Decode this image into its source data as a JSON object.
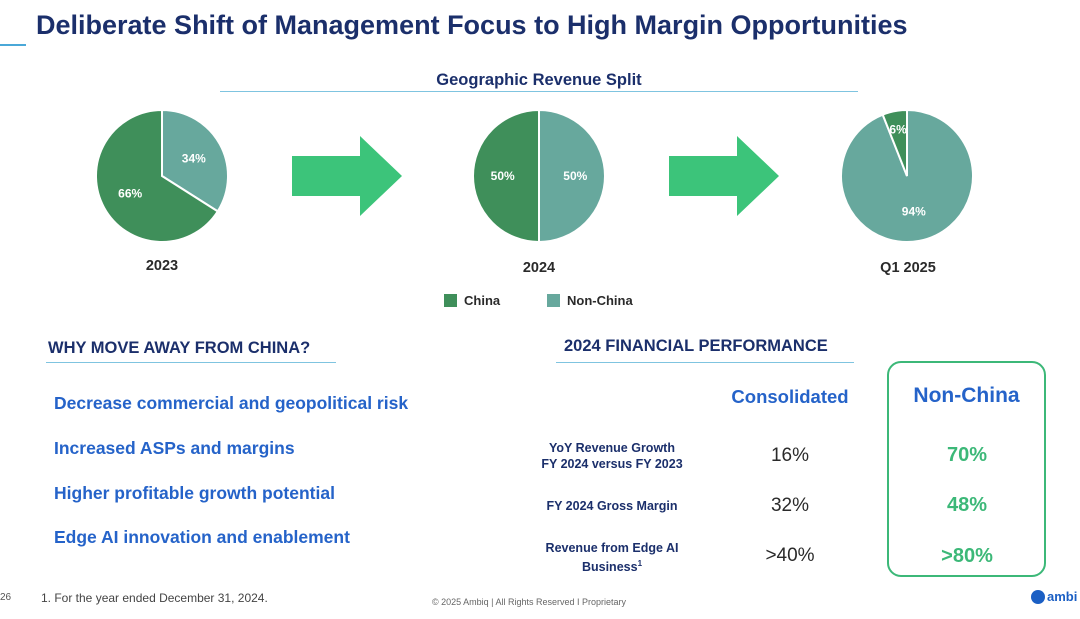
{
  "page": {
    "title": "Deliberate Shift of Management Focus to High Margin Opportunities",
    "page_number": "26",
    "footnote": "1. For the year ended December 31, 2024.",
    "copyright": "© 2025 Ambiq  |  All Rights Reserved I Proprietary",
    "logo_text": "ambi"
  },
  "chart_data": {
    "type": "pie",
    "title": "Geographic Revenue Split",
    "legend": [
      "China",
      "Non-China"
    ],
    "colors": {
      "China": "#3f8f5a",
      "Non-China": "#67a89d"
    },
    "pies": [
      {
        "label": "2023",
        "values": {
          "China": 66,
          "Non-China": 34
        },
        "labels": {
          "China": "66%",
          "Non-China": "34%"
        }
      },
      {
        "label": "2024",
        "values": {
          "China": 50,
          "Non-China": 50
        },
        "labels": {
          "China": "50%",
          "Non-China": "50%"
        }
      },
      {
        "label": "Q1 2025",
        "values": {
          "China": 6,
          "Non-China": 94
        },
        "labels": {
          "China": "6%",
          "Non-China": "94%"
        }
      }
    ]
  },
  "why": {
    "title": "WHY MOVE AWAY FROM CHINA?",
    "reasons": [
      "Decrease commercial and geopolitical risk",
      "Increased ASPs and margins",
      "Higher profitable growth potential",
      "Edge AI innovation and enablement"
    ]
  },
  "financial": {
    "title": "2024 FINANCIAL PERFORMANCE",
    "col_consolidated": "Consolidated",
    "col_non_china": "Non-China",
    "rows": [
      {
        "metric_line1": "YoY Revenue Growth",
        "metric_line2": "FY 2024 versus FY 2023",
        "consolidated": "16%",
        "non_china": "70%"
      },
      {
        "metric_line1": "FY 2024 Gross Margin",
        "metric_line2": "",
        "consolidated": "32%",
        "non_china": "48%"
      },
      {
        "metric_line1": "Revenue from Edge AI",
        "metric_line2": "Business",
        "metric_sup": "1",
        "consolidated": ">40%",
        "non_china": ">80%"
      }
    ]
  },
  "colors": {
    "arrow": "#3cc47a",
    "accent_green": "#3cb878",
    "title_navy": "#1b2f6b",
    "blue_text": "#2563c9"
  }
}
